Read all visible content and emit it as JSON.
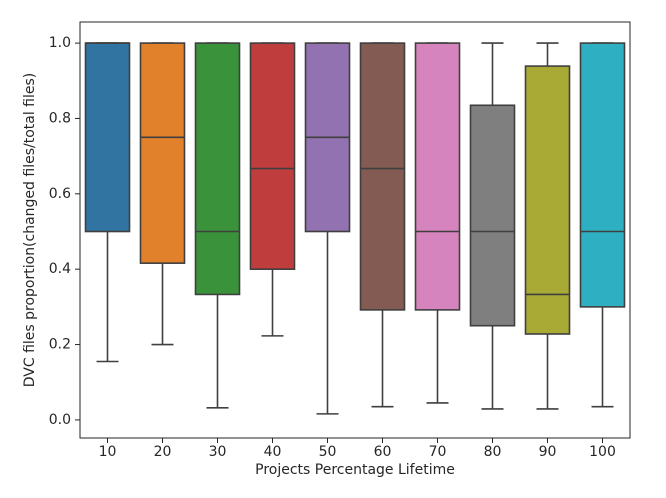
{
  "chart_data": {
    "type": "box",
    "x_label": "Projects Percentage Lifetime",
    "y_label": "DVC files proportion(changed files/total files)",
    "categories": [
      "10",
      "20",
      "30",
      "40",
      "50",
      "60",
      "70",
      "80",
      "90",
      "100"
    ],
    "whisker_low": [
      0.155,
      0.2,
      0.032,
      0.223,
      0.016,
      0.035,
      0.045,
      0.029,
      0.029,
      0.035
    ],
    "q1": [
      0.5,
      0.416,
      0.333,
      0.4,
      0.5,
      0.292,
      0.292,
      0.25,
      0.228,
      0.3
    ],
    "median": [
      1.0,
      0.75,
      0.5,
      0.667,
      0.75,
      0.667,
      0.5,
      0.5,
      0.333,
      0.5
    ],
    "q3": [
      1.0,
      1.0,
      1.0,
      1.0,
      1.0,
      1.0,
      1.0,
      0.835,
      0.939,
      1.0
    ],
    "whisker_high": [
      1.0,
      1.0,
      1.0,
      1.0,
      1.0,
      1.0,
      1.0,
      1.0,
      1.0,
      1.0
    ],
    "colors": [
      "#3274a1",
      "#e1812c",
      "#3a923a",
      "#c03d3e",
      "#9372b2",
      "#845b53",
      "#d684bd",
      "#7f7f7f",
      "#a9aa35",
      "#2eb0c2"
    ],
    "ylim": [
      -0.048,
      1.056
    ],
    "yticks": [
      {
        "value": 0,
        "label": "0.0"
      },
      0.2,
      0.4,
      0.6,
      0.8,
      {
        "value": 1,
        "label": "1.0"
      }
    ]
  }
}
